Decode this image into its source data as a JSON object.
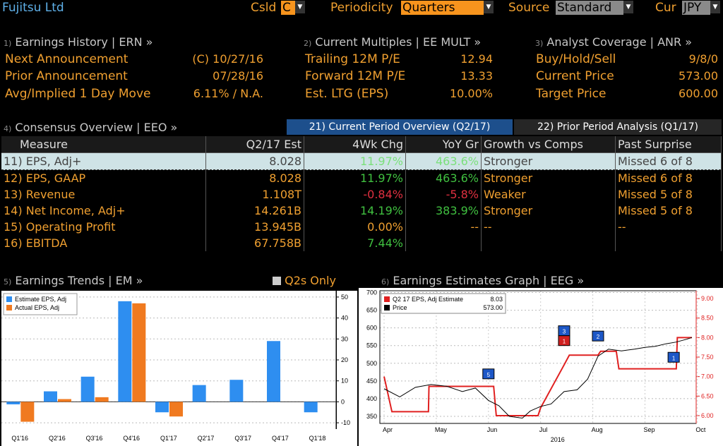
{
  "top": {
    "company": "Fujitsu Ltd",
    "csld_label": "Csld",
    "csld_value": "C",
    "periodicity_label": "Periodicity",
    "periodicity_value": "Quarters",
    "source_label": "Source",
    "source_value": "Standard",
    "cur_label": "Cur",
    "cur_value": "JPY"
  },
  "erh": {
    "num": "1)",
    "title": "Earnings History | ERN »",
    "rows": [
      {
        "label": "Next Announcement",
        "value": "(C)  10/27/16"
      },
      {
        "label": "Prior Announcement",
        "value": "07/28/16"
      },
      {
        "label": "Avg/Implied 1 Day Move",
        "value": "6.11% / N.A."
      }
    ]
  },
  "mult": {
    "num": "2)",
    "title": "Current Multiples | EE MULT »",
    "rows": [
      {
        "label": "Trailing 12M P/E",
        "value": "12.94"
      },
      {
        "label": "Forward 12M P/E",
        "value": "13.33"
      },
      {
        "label": "Est. LTG (EPS)",
        "value": "10.00%"
      }
    ]
  },
  "anr": {
    "num": "3)",
    "title": "Analyst Coverage | ANR »",
    "rows": [
      {
        "label": "Buy/Hold/Sell",
        "value": "9/8/0"
      },
      {
        "label": "Current Price",
        "value": "573.00"
      },
      {
        "label": "Target Price",
        "value": "600.00"
      }
    ]
  },
  "consensus": {
    "num": "4)",
    "title": "Consensus Overview | EEO »",
    "tab1": "21) Current Period Overview (Q2/17)",
    "tab2": "22) Prior Period Analysis (Q1/17)",
    "headers": [
      "Measure",
      "Q2/17 Est",
      "4Wk Chg",
      "YoY Gr",
      "Growth vs Comps",
      "Past Surprise"
    ],
    "rows": [
      {
        "n": "11)",
        "measure": "EPS, Adj+",
        "est": "8.028",
        "chg": "11.97%",
        "yoy": "463.6%",
        "comps": "Stronger",
        "surp": "Missed 6 of 8"
      },
      {
        "n": "12)",
        "measure": "EPS, GAAP",
        "est": "8.028",
        "chg": "11.97%",
        "yoy": "463.6%",
        "comps": "Stronger",
        "surp": "Missed 6 of 8"
      },
      {
        "n": "13)",
        "measure": "Revenue",
        "est": "1.108T",
        "chg": "-0.84%",
        "yoy": "-5.8%",
        "comps": "Weaker",
        "surp": "Missed 5 of 8"
      },
      {
        "n": "14)",
        "measure": "Net Income, Adj+",
        "est": "14.261B",
        "chg": "14.19%",
        "yoy": "383.9%",
        "comps": "Stronger",
        "surp": "Missed 5 of 8"
      },
      {
        "n": "15)",
        "measure": "Operating Profit",
        "est": "13.945B",
        "chg": "0.00%",
        "yoy": "--",
        "comps": "--",
        "surp": "--"
      },
      {
        "n": "16)",
        "measure": "EBITDA",
        "est": "67.758B",
        "chg": "7.44%",
        "yoy": "",
        "comps": "",
        "surp": ""
      }
    ]
  },
  "trends": {
    "num": "5)",
    "title": "Earnings Trends | EM »",
    "toggle": "Q2s Only"
  },
  "graph": {
    "num": "6)",
    "title": "Earnings Estimates Graph | EEG »"
  },
  "chart_data": [
    {
      "type": "bar",
      "categories": [
        "Q1'16",
        "Q2'16",
        "Q3'16",
        "Q4'16",
        "Q1'17",
        "Q2'17",
        "Q3'17",
        "Q4'17",
        "Q1'18"
      ],
      "series": [
        {
          "name": "Estimate EPS, Adj",
          "color": "#2e8ef0",
          "values": [
            -1.2,
            5,
            12,
            48,
            -5,
            8,
            10.5,
            29,
            -5
          ]
        },
        {
          "name": "Actual EPS, Adj",
          "color": "#f07a20",
          "values": [
            -9.5,
            1.3,
            2.2,
            47,
            -7,
            null,
            null,
            null,
            null
          ]
        }
      ],
      "ylim": [
        -13,
        53
      ],
      "yticks": [
        -10,
        0,
        10,
        20,
        30,
        40,
        50
      ]
    },
    {
      "type": "line",
      "x": [
        "Apr",
        "May",
        "Jun",
        "Jul",
        "Aug",
        "Sep",
        "Oct"
      ],
      "xlabel_year": "2016",
      "left_ticks": [
        350,
        400,
        450,
        500,
        550,
        600,
        650,
        700
      ],
      "right_ticks": [
        "6.00",
        "6.50",
        "7.00",
        "7.50",
        "8.00",
        "8.50",
        "9.00"
      ],
      "left_lim": [
        330,
        705
      ],
      "right_lim": [
        5.8,
        9.2
      ],
      "series": [
        {
          "name": "Q2 17 EPS, Adj Estimate",
          "color": "#e02020",
          "value": "8.03",
          "points": [
            [
              0,
              7.0
            ],
            [
              0.15,
              6.1
            ],
            [
              0.85,
              6.1
            ],
            [
              0.86,
              6.75
            ],
            [
              2.1,
              6.75
            ],
            [
              2.15,
              6.0
            ],
            [
              2.95,
              6.0
            ],
            [
              3.0,
              6.2
            ],
            [
              3.45,
              7.3
            ],
            [
              3.55,
              7.55
            ],
            [
              4.1,
              7.55
            ],
            [
              4.15,
              7.65
            ],
            [
              4.45,
              7.65
            ],
            [
              4.5,
              7.2
            ],
            [
              5.6,
              7.2
            ],
            [
              5.62,
              8.0
            ],
            [
              5.9,
              8.0
            ]
          ]
        },
        {
          "name": "Price",
          "color": "#000000",
          "value": "573.00",
          "points": [
            [
              0,
              428
            ],
            [
              0.3,
              405
            ],
            [
              0.6,
              432
            ],
            [
              0.9,
              440
            ],
            [
              1.2,
              435
            ],
            [
              1.5,
              420
            ],
            [
              1.75,
              430
            ],
            [
              2.0,
              395
            ],
            [
              2.2,
              380
            ],
            [
              2.4,
              350
            ],
            [
              2.65,
              345
            ],
            [
              2.8,
              365
            ],
            [
              3.0,
              378
            ],
            [
              3.2,
              385
            ],
            [
              3.45,
              420
            ],
            [
              3.7,
              425
            ],
            [
              3.9,
              455
            ],
            [
              4.1,
              520
            ],
            [
              4.3,
              540
            ],
            [
              4.55,
              535
            ],
            [
              4.8,
              540
            ],
            [
              5.0,
              545
            ],
            [
              5.2,
              548
            ],
            [
              5.4,
              555
            ],
            [
              5.6,
              560
            ],
            [
              5.8,
              568
            ],
            [
              5.9,
              573
            ]
          ]
        }
      ],
      "markers": [
        {
          "label": "5",
          "x": 2.0,
          "y": 468,
          "color": "#1d57c7"
        },
        {
          "label": "3",
          "x": 3.45,
          "y": 590,
          "color": "#1d57c7"
        },
        {
          "label": "2",
          "x": 4.1,
          "y": 575,
          "color": "#1d57c7"
        },
        {
          "label": "1",
          "x": 5.55,
          "y": 515,
          "color": "#1d57c7"
        },
        {
          "label": "1",
          "x": 3.45,
          "y": 562,
          "color": "#d02020"
        }
      ]
    }
  ]
}
